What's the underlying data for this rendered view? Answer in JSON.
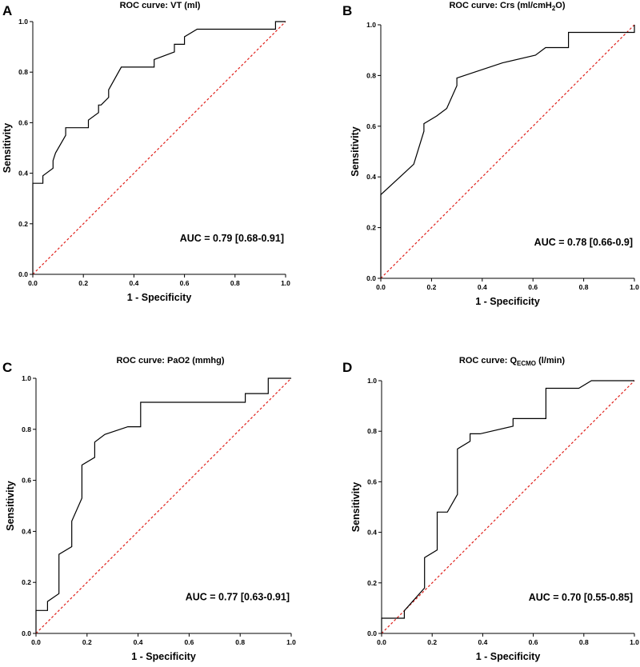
{
  "chart_data": [
    {
      "panel": "A",
      "type": "line",
      "title": "ROC curve:  VT (ml)",
      "title_subscript": "",
      "title_suffix": "",
      "xlabel": "1 - Specificity",
      "ylabel": "Sensitivity",
      "xlim": [
        0,
        1
      ],
      "ylim": [
        0,
        1
      ],
      "xticks": [
        "0.0",
        "0.2",
        "0.4",
        "0.6",
        "0.8",
        "1.0"
      ],
      "yticks": [
        "0.0",
        "0.2",
        "0.4",
        "0.6",
        "0.8",
        "1.0"
      ],
      "annotation": "AUC = 0.79 [0.68-0.91]",
      "roc": {
        "x": [
          0,
          0,
          0.04,
          0.04,
          0.08,
          0.08,
          0.09,
          0.13,
          0.13,
          0.22,
          0.22,
          0.26,
          0.26,
          0.27,
          0.3,
          0.3,
          0.35,
          0.48,
          0.48,
          0.56,
          0.56,
          0.6,
          0.6,
          0.65,
          0.96,
          0.96,
          1.0
        ],
        "y": [
          0,
          0.36,
          0.36,
          0.39,
          0.42,
          0.45,
          0.48,
          0.55,
          0.58,
          0.58,
          0.61,
          0.64,
          0.67,
          0.67,
          0.7,
          0.73,
          0.82,
          0.82,
          0.85,
          0.88,
          0.91,
          0.91,
          0.94,
          0.97,
          0.97,
          1.0,
          1.0
        ]
      },
      "reference": {
        "x": [
          0,
          1
        ],
        "y": [
          0,
          1
        ]
      }
    },
    {
      "panel": "B",
      "type": "line",
      "title": "ROC curve: Crs (ml/cmH",
      "title_subscript": "2",
      "title_suffix": "O)",
      "xlabel": "1 - Specificity",
      "ylabel": "Sensitivity",
      "xlim": [
        0,
        1
      ],
      "ylim": [
        0,
        1
      ],
      "xticks": [
        "0.0",
        "0.2",
        "0.4",
        "0.6",
        "0.8",
        "1.0"
      ],
      "yticks": [
        "0.0",
        "0.2",
        "0.4",
        "0.6",
        "0.8",
        "1.0"
      ],
      "annotation": "AUC = 0.78 [0.66-0.9]",
      "roc": {
        "x": [
          0,
          0,
          0.13,
          0.17,
          0.17,
          0.22,
          0.26,
          0.3,
          0.3,
          0.39,
          0.48,
          0.61,
          0.65,
          0.74,
          0.74,
          1.0,
          1.0
        ],
        "y": [
          0,
          0.33,
          0.45,
          0.58,
          0.61,
          0.64,
          0.67,
          0.76,
          0.79,
          0.82,
          0.85,
          0.88,
          0.91,
          0.91,
          0.97,
          0.97,
          1.0
        ]
      },
      "reference": {
        "x": [
          0,
          1
        ],
        "y": [
          0,
          1
        ]
      }
    },
    {
      "panel": "C",
      "type": "line",
      "title": "ROC curve: PaO2 (mmhg)",
      "title_subscript": "",
      "title_suffix": "",
      "xlabel": "1 - Specificity",
      "ylabel": "Sensitivity",
      "xlim": [
        0,
        1
      ],
      "ylim": [
        0,
        1
      ],
      "xticks": [
        "0.0",
        "0.2",
        "0.4",
        "0.6",
        "0.8",
        "1.0"
      ],
      "yticks": [
        "0.0",
        "0.2",
        "0.4",
        "0.6",
        "0.8",
        "1.0"
      ],
      "annotation": "AUC = 0.77 [0.63-0.91]",
      "roc": {
        "x": [
          0,
          0,
          0.045,
          0.045,
          0.09,
          0.09,
          0.14,
          0.14,
          0.18,
          0.18,
          0.23,
          0.23,
          0.27,
          0.36,
          0.41,
          0.41,
          0.82,
          0.82,
          0.91,
          0.91,
          1.0
        ],
        "y": [
          0,
          0.09,
          0.09,
          0.125,
          0.156,
          0.31,
          0.34,
          0.44,
          0.53,
          0.66,
          0.69,
          0.75,
          0.78,
          0.81,
          0.81,
          0.906,
          0.906,
          0.94,
          0.94,
          1.0,
          1.0
        ]
      },
      "reference": {
        "x": [
          0,
          1
        ],
        "y": [
          0,
          1
        ]
      }
    },
    {
      "panel": "D",
      "type": "line",
      "title": "ROC curve:  Q",
      "title_subscript": "ECMO",
      "title_suffix": " (l/min)",
      "xlabel": "1 - Specificity",
      "ylabel": "Sensitivity",
      "xlim": [
        0,
        1
      ],
      "ylim": [
        0,
        1
      ],
      "xticks": [
        "0.0",
        "0.2",
        "0.4",
        "0.6",
        "0.8",
        "1.0"
      ],
      "yticks": [
        "0.0",
        "0.2",
        "0.4",
        "0.6",
        "0.8",
        "1.0"
      ],
      "annotation": "AUC = 0.70 [0.55-0.85]",
      "roc": {
        "x": [
          0,
          0,
          0.09,
          0.09,
          0.17,
          0.17,
          0.22,
          0.22,
          0.26,
          0.3,
          0.3,
          0.35,
          0.35,
          0.39,
          0.52,
          0.52,
          0.65,
          0.65,
          0.78,
          0.83,
          1.0
        ],
        "y": [
          0,
          0.06,
          0.06,
          0.09,
          0.18,
          0.3,
          0.33,
          0.48,
          0.48,
          0.55,
          0.73,
          0.76,
          0.79,
          0.79,
          0.82,
          0.85,
          0.85,
          0.97,
          0.97,
          1.0,
          1.0
        ]
      },
      "reference": {
        "x": [
          0,
          1
        ],
        "y": [
          0,
          1
        ]
      }
    }
  ]
}
